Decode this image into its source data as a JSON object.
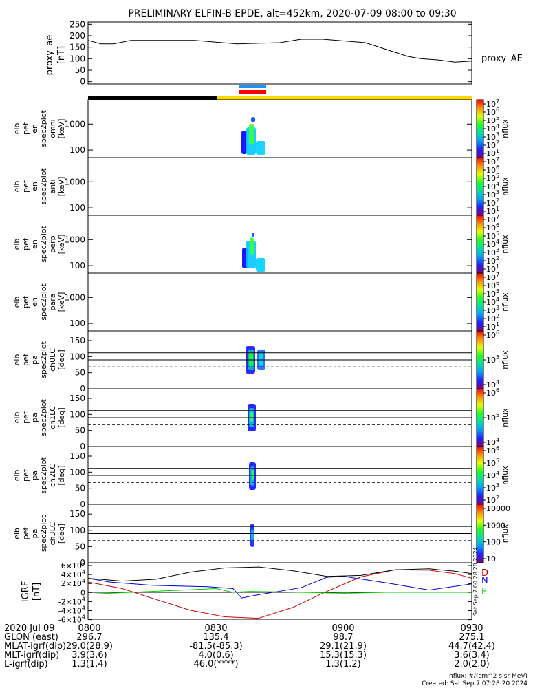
{
  "title": "PRELIMINARY ELFIN-B EPDE, alt=452km, 2020-07-09 08:00 to 09:30",
  "colors": {
    "bar_black": "#000000",
    "bar_yellow": "#ffd700",
    "marker_blue": "#1e90ff",
    "marker_red": "#ff0000",
    "grf_d": "#cc0000",
    "grf_n": "#0000cc",
    "grf_e": "#00cc00",
    "grf_total": "#000000"
  },
  "chart_data": [
    {
      "type": "line",
      "id": "proxy_ae",
      "ylabel": [
        "proxy_ae",
        "[nT]"
      ],
      "right_label": "proxy_AE",
      "ylim": [
        -10,
        260
      ],
      "yticks": [
        0,
        50,
        100,
        150,
        200,
        250
      ],
      "x_minutes": [
        0,
        3,
        6,
        10,
        15,
        25,
        35,
        45,
        50,
        55,
        65,
        75,
        78,
        82,
        86,
        90
      ],
      "values": [
        180,
        165,
        165,
        180,
        180,
        180,
        165,
        170,
        185,
        185,
        170,
        110,
        100,
        95,
        85,
        90
      ]
    },
    {
      "type": "heatmap",
      "id": "omni",
      "ylabel": [
        "elb",
        "pef",
        "en",
        "spec2plot",
        "omni",
        "[keV]"
      ],
      "yticks": [
        "1000",
        "100"
      ],
      "colorbar_ticks": [
        "10^7",
        "10^6",
        "10^5",
        "10^4",
        "10^3",
        "10^2",
        "10^1"
      ],
      "colorbar_label": "nflux"
    },
    {
      "type": "heatmap",
      "id": "anti",
      "ylabel": [
        "elb",
        "pef",
        "en",
        "spec2plot",
        "anti",
        "[keV]"
      ],
      "yticks": [
        "1000",
        "100"
      ],
      "colorbar_ticks": [
        "10^7",
        "10^6",
        "10^5",
        "10^4",
        "10^3",
        "10^2",
        "10^1"
      ],
      "colorbar_label": "nflux"
    },
    {
      "type": "heatmap",
      "id": "perp",
      "ylabel": [
        "elb",
        "pef",
        "en",
        "spec2plot",
        "perp",
        "[keV]"
      ],
      "yticks": [
        "1000",
        "100"
      ],
      "colorbar_ticks": [
        "10^7",
        "10^6",
        "10^5",
        "10^4",
        "10^3",
        "10^2",
        "10^1"
      ],
      "colorbar_label": "nflux"
    },
    {
      "type": "heatmap",
      "id": "para",
      "ylabel": [
        "elb",
        "pef",
        "en",
        "spec2plot",
        "para",
        "[keV]"
      ],
      "yticks": [
        "1000",
        "100"
      ],
      "colorbar_ticks": [
        "10^7",
        "10^6",
        "10^5",
        "10^4",
        "10^3",
        "10^2",
        "10^1"
      ],
      "colorbar_label": "nflux"
    },
    {
      "type": "heatmap",
      "id": "ch0LC",
      "ylabel": [
        "elb",
        "pef",
        "pa",
        "spec2plot",
        "ch0LC",
        "[deg]"
      ],
      "yticks": [
        "150",
        "100",
        "50",
        "0"
      ],
      "colorbar_ticks": [
        "10^6",
        "10^5",
        "10^4"
      ],
      "colorbar_label": "nflux"
    },
    {
      "type": "heatmap",
      "id": "ch1LC",
      "ylabel": [
        "elb",
        "pef",
        "pa",
        "spec2plot",
        "ch1LC",
        "[deg]"
      ],
      "yticks": [
        "150",
        "100",
        "50",
        "0"
      ],
      "colorbar_ticks": [
        "10^6",
        "10^5",
        "10^4"
      ],
      "colorbar_label": "nflux"
    },
    {
      "type": "heatmap",
      "id": "ch2LC",
      "ylabel": [
        "elb",
        "pef",
        "pa",
        "spec2plot",
        "ch2LC",
        "[deg]"
      ],
      "yticks": [
        "150",
        "100",
        "50",
        "0"
      ],
      "colorbar_ticks": [
        "10^6",
        "10^5",
        "10^4",
        "10^3",
        "10^2"
      ],
      "colorbar_label": "nflux"
    },
    {
      "type": "heatmap",
      "id": "ch3LC",
      "ylabel": [
        "elb",
        "pef",
        "pa",
        "spec2plot",
        "ch3LC",
        "[deg]"
      ],
      "yticks": [
        "150",
        "100",
        "50",
        "0"
      ],
      "colorbar_ticks": [
        "10000",
        "1000",
        "100",
        "10"
      ],
      "colorbar_label": "nflux"
    },
    {
      "type": "line",
      "id": "igrf",
      "ylabel": [
        "IGRF",
        "[nT]"
      ],
      "yticks": [
        "6×10^4",
        "4×10^4",
        "2×10^4",
        "0",
        "-2×10^4",
        "-4×10^4",
        "-6×10^4"
      ],
      "ylim": [
        -60000,
        60000
      ],
      "legend": [
        "D",
        "N",
        "E"
      ],
      "side_stamp": "Sat Sep  7 00:28:20 2024",
      "series": [
        {
          "name": "D",
          "x_minutes": [
            0,
            8,
            16,
            24,
            32,
            40,
            48,
            56,
            64,
            72,
            80,
            86,
            90
          ],
          "values": [
            22000,
            8000,
            -15000,
            -38000,
            -52000,
            -55000,
            -32000,
            2000,
            33000,
            48000,
            47000,
            40000,
            30000
          ]
        },
        {
          "name": "N",
          "x_minutes": [
            0,
            5,
            15,
            28,
            34,
            36,
            40,
            50,
            56,
            60,
            70,
            80,
            90
          ],
          "values": [
            30000,
            22000,
            15000,
            12000,
            8000,
            -12000,
            -5000,
            10000,
            32000,
            34000,
            20000,
            5000,
            18000
          ]
        },
        {
          "name": "E",
          "x_minutes": [
            0,
            10,
            20,
            30,
            34,
            38,
            50,
            60,
            70,
            80,
            90
          ],
          "values": [
            -4000,
            0,
            4000,
            8000,
            0,
            2000,
            0,
            -2000,
            0,
            0,
            0
          ]
        },
        {
          "name": "",
          "x_minutes": [
            0,
            8,
            16,
            24,
            32,
            40,
            48,
            56,
            64,
            72,
            80,
            86,
            90
          ],
          "values": [
            30000,
            24000,
            28000,
            43000,
            52000,
            54000,
            46000,
            34000,
            36000,
            48000,
            50000,
            45000,
            40000
          ]
        }
      ]
    }
  ],
  "footer": {
    "row_labels": [
      "2020 Jul 09",
      "GLON (east)",
      "MLAT-igrf(dip)",
      "MLT-igrf(dip)",
      "L-igrf(dip)"
    ],
    "columns": [
      {
        "time": "0800",
        "glon": "296.7",
        "mlat": "29.0(28.9)",
        "mlt": "3.9(3.6)",
        "l": "1.3(1.4)"
      },
      {
        "time": "0830",
        "glon": "135.4",
        "mlat": "-81.5(-85.3)",
        "mlt": "4.0(0.6)",
        "l": "46.0(****)"
      },
      {
        "time": "0900",
        "glon": "98.7",
        "mlat": "29.1(21.9)",
        "mlt": "15.3(15.3)",
        "l": "1.3(1.2)"
      },
      {
        "time": "0930",
        "glon": "275.1",
        "mlat": "44.7(42.4)",
        "mlt": "3.6(3.4)",
        "l": "2.0(2.0)"
      }
    ],
    "nflux_units": "nflux: #/(cm^2 s sr MeV)",
    "created": "Created: Sat Sep  7 07:28:20 2024"
  }
}
